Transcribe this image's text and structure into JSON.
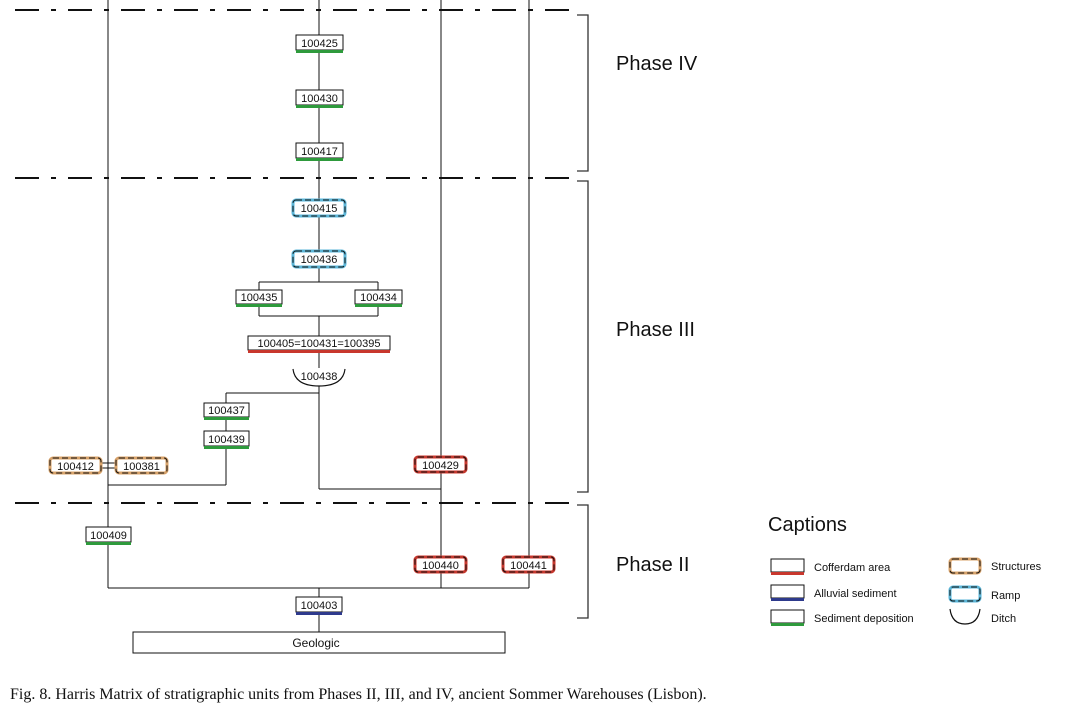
{
  "phases": [
    "Phase IV",
    "Phase III",
    "Phase II"
  ],
  "units": {
    "u100425": "100425",
    "u100430": "100430",
    "u100417": "100417",
    "u100415": "100415",
    "u100436": "100436",
    "u100435": "100435",
    "u100434": "100434",
    "u100405": "100405=100431=100395",
    "u100438": "100438",
    "u100437": "100437",
    "u100439": "100439",
    "u100412": "100412",
    "u100381": "100381",
    "u100429": "100429",
    "u100409": "100409",
    "u100440": "100440",
    "u100441": "100441",
    "u100403": "100403",
    "geologic": "Geologic"
  },
  "legend": {
    "title": "Captions",
    "cofferdam": "Cofferdam area",
    "alluvial": "Alluvial sediment",
    "sediment": "Sediment deposition",
    "structures": "Structures",
    "ramp": "Ramp",
    "ditch": "Ditch"
  },
  "colors": {
    "cofferdam": "#c8372d",
    "alluvial": "#2e3a8c",
    "sediment": "#2e9a3c",
    "structures": "#d9a36a",
    "ramp": "#5bb6d8"
  },
  "figure_caption": "Fig. 8. Harris Matrix of stratigraphic units from Phases II, III, and IV,  ancient Sommer Warehouses (Lisbon)."
}
